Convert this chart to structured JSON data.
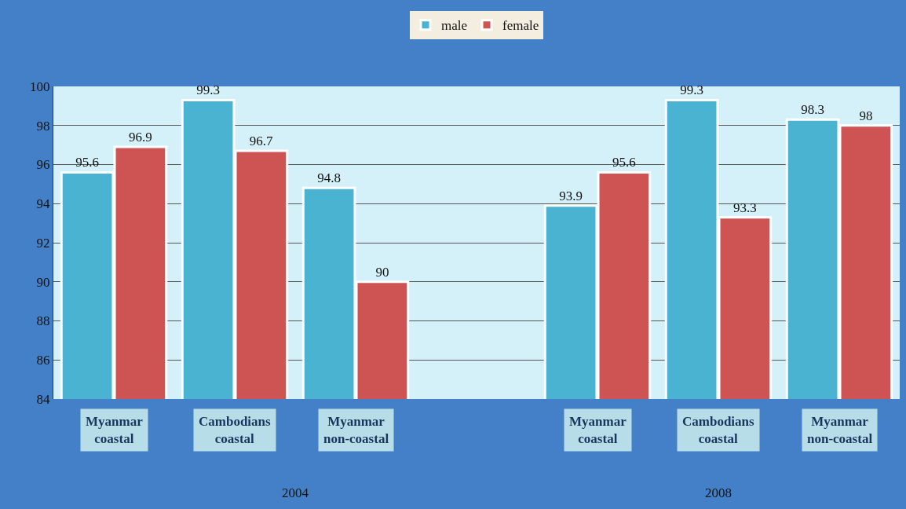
{
  "chart_data": {
    "type": "bar",
    "categories": [
      "Myanmar coastal",
      "Cambodians coastal",
      "Myanmar non-coastal",
      null,
      "Myanmar coastal",
      "Cambodians coastal",
      "Myanmar non-coastal"
    ],
    "series": [
      {
        "name": "male",
        "color": "#4ab3d1",
        "values": [
          95.6,
          99.3,
          94.8,
          null,
          93.9,
          99.3,
          98.3
        ]
      },
      {
        "name": "female",
        "color": "#cd5452",
        "values": [
          96.9,
          96.7,
          90,
          null,
          95.6,
          93.3,
          98
        ]
      }
    ],
    "annotations": [
      "2004",
      "2008"
    ],
    "ylim": [
      84,
      100
    ],
    "yticks": [
      84,
      86,
      88,
      90,
      92,
      94,
      96,
      98,
      100
    ],
    "grid": "y",
    "legend": "top",
    "data_labels": true
  }
}
